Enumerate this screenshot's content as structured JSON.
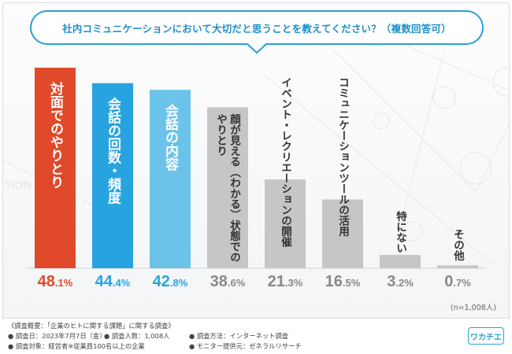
{
  "title": "社内コミュニケーションにおいて大切だと思うことを教えてください？（複数回答可）",
  "sample_note": "(n=1,008人)",
  "watermark": "TION",
  "footer": {
    "summary": "《調査概要：「企業のヒトに関する課題」に関する調査》",
    "date": "● 調査日：2023年7月7日（金）",
    "count": "● 調査人数：1,008人",
    "method": "● 調査方法：インターネット調査",
    "target": "● 調査対象：経営者※従業員100名以上の企業",
    "provider": "● モニター提供元：ゼネラルリサーチ"
  },
  "logo": "ワカチエ",
  "colors": {
    "accent": "#2a9fd6",
    "bar1": "#e04a2a",
    "bar2": "#27a4e0",
    "bar3": "#6cc3ea",
    "bar_gray": "#c6c6c6"
  },
  "chart_data": {
    "type": "bar",
    "title": "社内コミュニケーションにおいて大切だと思うことを教えてください？（複数回答可）",
    "unit": "%",
    "ylim": [
      0,
      50
    ],
    "categories": [
      "対面でのやりとり",
      "会話の回数・頻度",
      "会話の内容",
      "顔が見える（わかる）状態でのやりとり",
      "イベント・レクリエーションの開催",
      "コミュニケーションツールの活用",
      "特にない",
      "その他"
    ],
    "values": [
      48.1,
      44.4,
      42.8,
      38.6,
      21.3,
      16.5,
      3.2,
      0.7
    ],
    "value_labels": [
      "48.1%",
      "44.4%",
      "42.8%",
      "38.6%",
      "21.3%",
      "16.5%",
      "3.2%",
      "0.7%"
    ]
  }
}
